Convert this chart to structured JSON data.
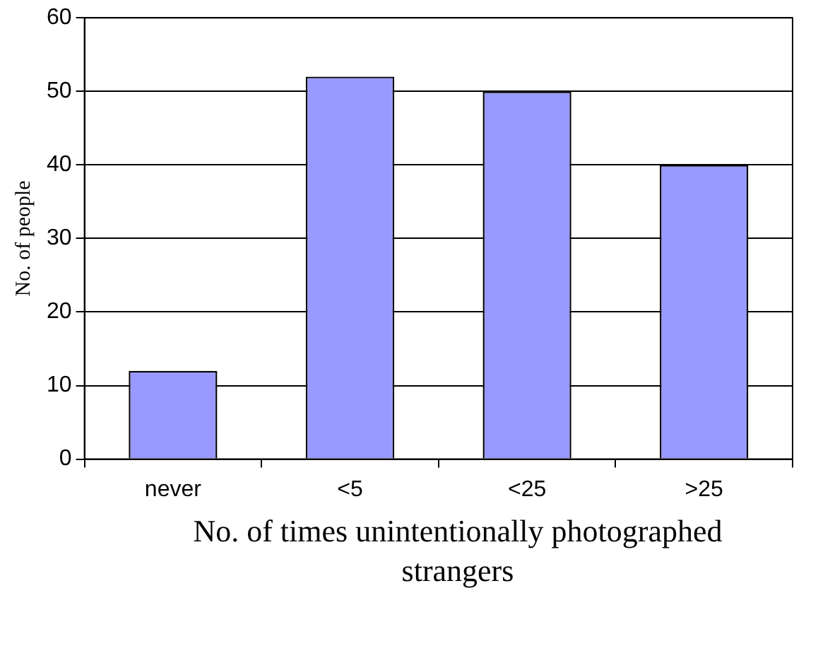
{
  "chart_data": {
    "type": "bar",
    "xlabel": "No. of times unintentionally photographed strangers",
    "ylabel": "No. of people",
    "categories": [
      "never",
      "<5",
      "<25",
      ">25"
    ],
    "values": [
      12,
      52,
      50,
      40
    ],
    "color": "#9999ff",
    "ylim": [
      0,
      60
    ],
    "yticks": [
      0,
      10,
      20,
      30,
      40,
      50,
      60
    ],
    "grid": "y"
  }
}
